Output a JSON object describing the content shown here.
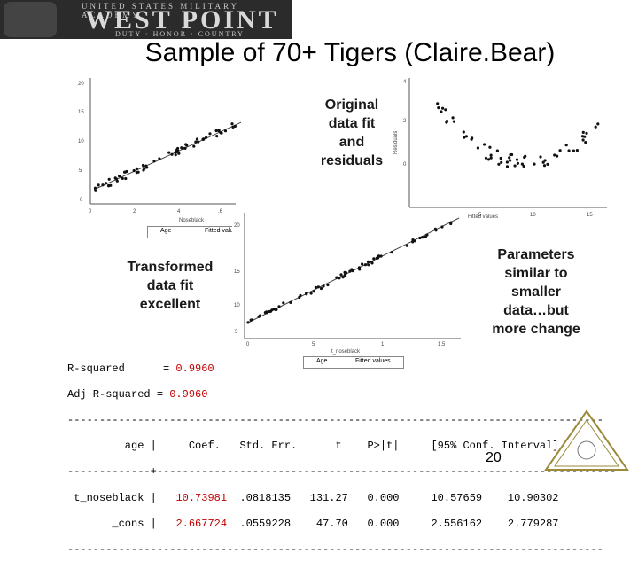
{
  "header": {
    "banner_small": "UNITED STATES MILITARY ACADEMY",
    "banner_big": "WEST POINT",
    "banner_tagline": "DUTY · HONOR · COUNTRY"
  },
  "slide": {
    "title": "Sample of 70+ Tigers (Claire.Bear)",
    "page_number": "20"
  },
  "annotations": {
    "original": [
      "Original",
      "data fit",
      "and",
      "residuals"
    ],
    "transformed": [
      "Transformed",
      "data fit",
      "excellent"
    ],
    "parameters": [
      "Parameters",
      "similar to",
      "smaller",
      "data…but",
      "more change"
    ]
  },
  "plots": {
    "plot1": {
      "xlabel": "Noseblack",
      "legend": [
        "Age",
        "Fitted valu"
      ],
      "yticks": [
        "20",
        "15",
        "10",
        "5",
        "0"
      ],
      "xticks": [
        "0",
        "2",
        "4",
        ".6"
      ]
    },
    "plot2": {
      "xlabel": "Fitted values",
      "ylabel": "Residuals",
      "yticks": [
        "4",
        "2",
        "0"
      ],
      "xticks": [
        "0",
        "5",
        "10",
        "15"
      ]
    },
    "plot3": {
      "xlabel": "t_noseblack",
      "legend": [
        "Age",
        "Fitted values"
      ],
      "yticks": [
        "20",
        "15",
        "10",
        "5"
      ],
      "xticks": [
        "0",
        "5",
        "1",
        "1.5"
      ]
    }
  },
  "regression": {
    "r2_label": "R-squared      =",
    "r2_value": "0.9960",
    "adjr2_label": "Adj R-squared =",
    "adjr2_value": "0.9960",
    "divider": "------------------------------------------------------------------------------------",
    "divider2": "-------------+------------------------------------------------------------------------",
    "header_left": "         age |",
    "header_right": "     Coef.   Std. Err.      t    P>|t|     [95% Conf. Interval]",
    "rows": [
      {
        "left": " t_noseblack |",
        "coef": "10.73981",
        "rest": "  .0818135   131.27   0.000     10.57659    10.90302"
      },
      {
        "left": "       _cons |",
        "coef": "2.667724",
        "rest": "  .0559228    47.70   0.000     2.556162    2.779287"
      }
    ]
  }
}
